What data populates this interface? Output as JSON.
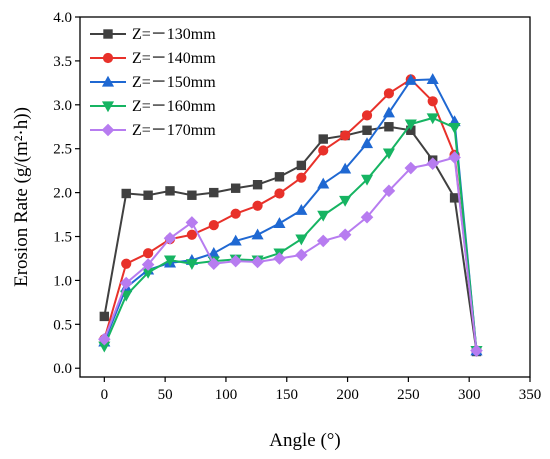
{
  "chart_data": {
    "type": "line",
    "xlabel": "Angle (°)",
    "ylabel": "Erosion Rate (g/(m²·h))",
    "xlim": [
      -20,
      350
    ],
    "ylim": [
      -0.1,
      4.0
    ],
    "xticks": [
      "0",
      "50",
      "100",
      "150",
      "200",
      "250",
      "300",
      "350"
    ],
    "yticks": [
      "0.0",
      "0.5",
      "1.0",
      "1.5",
      "2.0",
      "2.5",
      "3.0",
      "3.5",
      "4.0"
    ],
    "legend_position": "top-left",
    "grid": false,
    "series": [
      {
        "name": "Z=－130mm",
        "color": "#404040",
        "marker": "square",
        "x": [
          0,
          18,
          36,
          54,
          72,
          90,
          108,
          126,
          144,
          162,
          180,
          198,
          216,
          234,
          252,
          270,
          288,
          306
        ],
        "y": [
          0.59,
          1.99,
          1.97,
          2.02,
          1.97,
          2.0,
          2.05,
          2.09,
          2.18,
          2.31,
          2.61,
          2.65,
          2.71,
          2.75,
          2.71,
          2.37,
          1.94,
          0.19
        ]
      },
      {
        "name": "Z=－140mm",
        "color": "#e8312a",
        "marker": "circle",
        "x": [
          0,
          18,
          36,
          54,
          72,
          90,
          108,
          126,
          144,
          162,
          180,
          198,
          216,
          234,
          252,
          270,
          288,
          306
        ],
        "y": [
          0.33,
          1.19,
          1.31,
          1.47,
          1.52,
          1.63,
          1.76,
          1.85,
          1.99,
          2.17,
          2.48,
          2.65,
          2.88,
          3.13,
          3.29,
          3.04,
          2.43,
          0.2
        ]
      },
      {
        "name": "Z=－150mm",
        "color": "#1f68d2",
        "marker": "triangle-up",
        "x": [
          0,
          18,
          36,
          54,
          72,
          90,
          108,
          126,
          144,
          162,
          180,
          198,
          216,
          234,
          252,
          270,
          288,
          306
        ],
        "y": [
          0.3,
          0.92,
          1.12,
          1.2,
          1.23,
          1.31,
          1.45,
          1.52,
          1.65,
          1.8,
          2.1,
          2.27,
          2.56,
          2.91,
          3.28,
          3.29,
          2.81,
          0.2
        ]
      },
      {
        "name": "Z=－160mm",
        "color": "#16b462",
        "marker": "triangle-down",
        "x": [
          0,
          18,
          36,
          54,
          72,
          90,
          108,
          126,
          144,
          162,
          180,
          198,
          216,
          234,
          252,
          270,
          288,
          306
        ],
        "y": [
          0.25,
          0.83,
          1.09,
          1.23,
          1.19,
          1.22,
          1.24,
          1.23,
          1.31,
          1.47,
          1.74,
          1.91,
          2.15,
          2.45,
          2.78,
          2.85,
          2.74,
          0.2
        ]
      },
      {
        "name": "Z=－170mm",
        "color": "#b77cf0",
        "marker": "diamond",
        "x": [
          0,
          18,
          36,
          54,
          72,
          90,
          108,
          126,
          144,
          162,
          180,
          198,
          216,
          234,
          252,
          270,
          288,
          306
        ],
        "y": [
          0.33,
          0.97,
          1.18,
          1.48,
          1.66,
          1.19,
          1.22,
          1.21,
          1.25,
          1.29,
          1.45,
          1.52,
          1.72,
          2.02,
          2.28,
          2.33,
          2.4,
          0.2
        ]
      }
    ]
  }
}
